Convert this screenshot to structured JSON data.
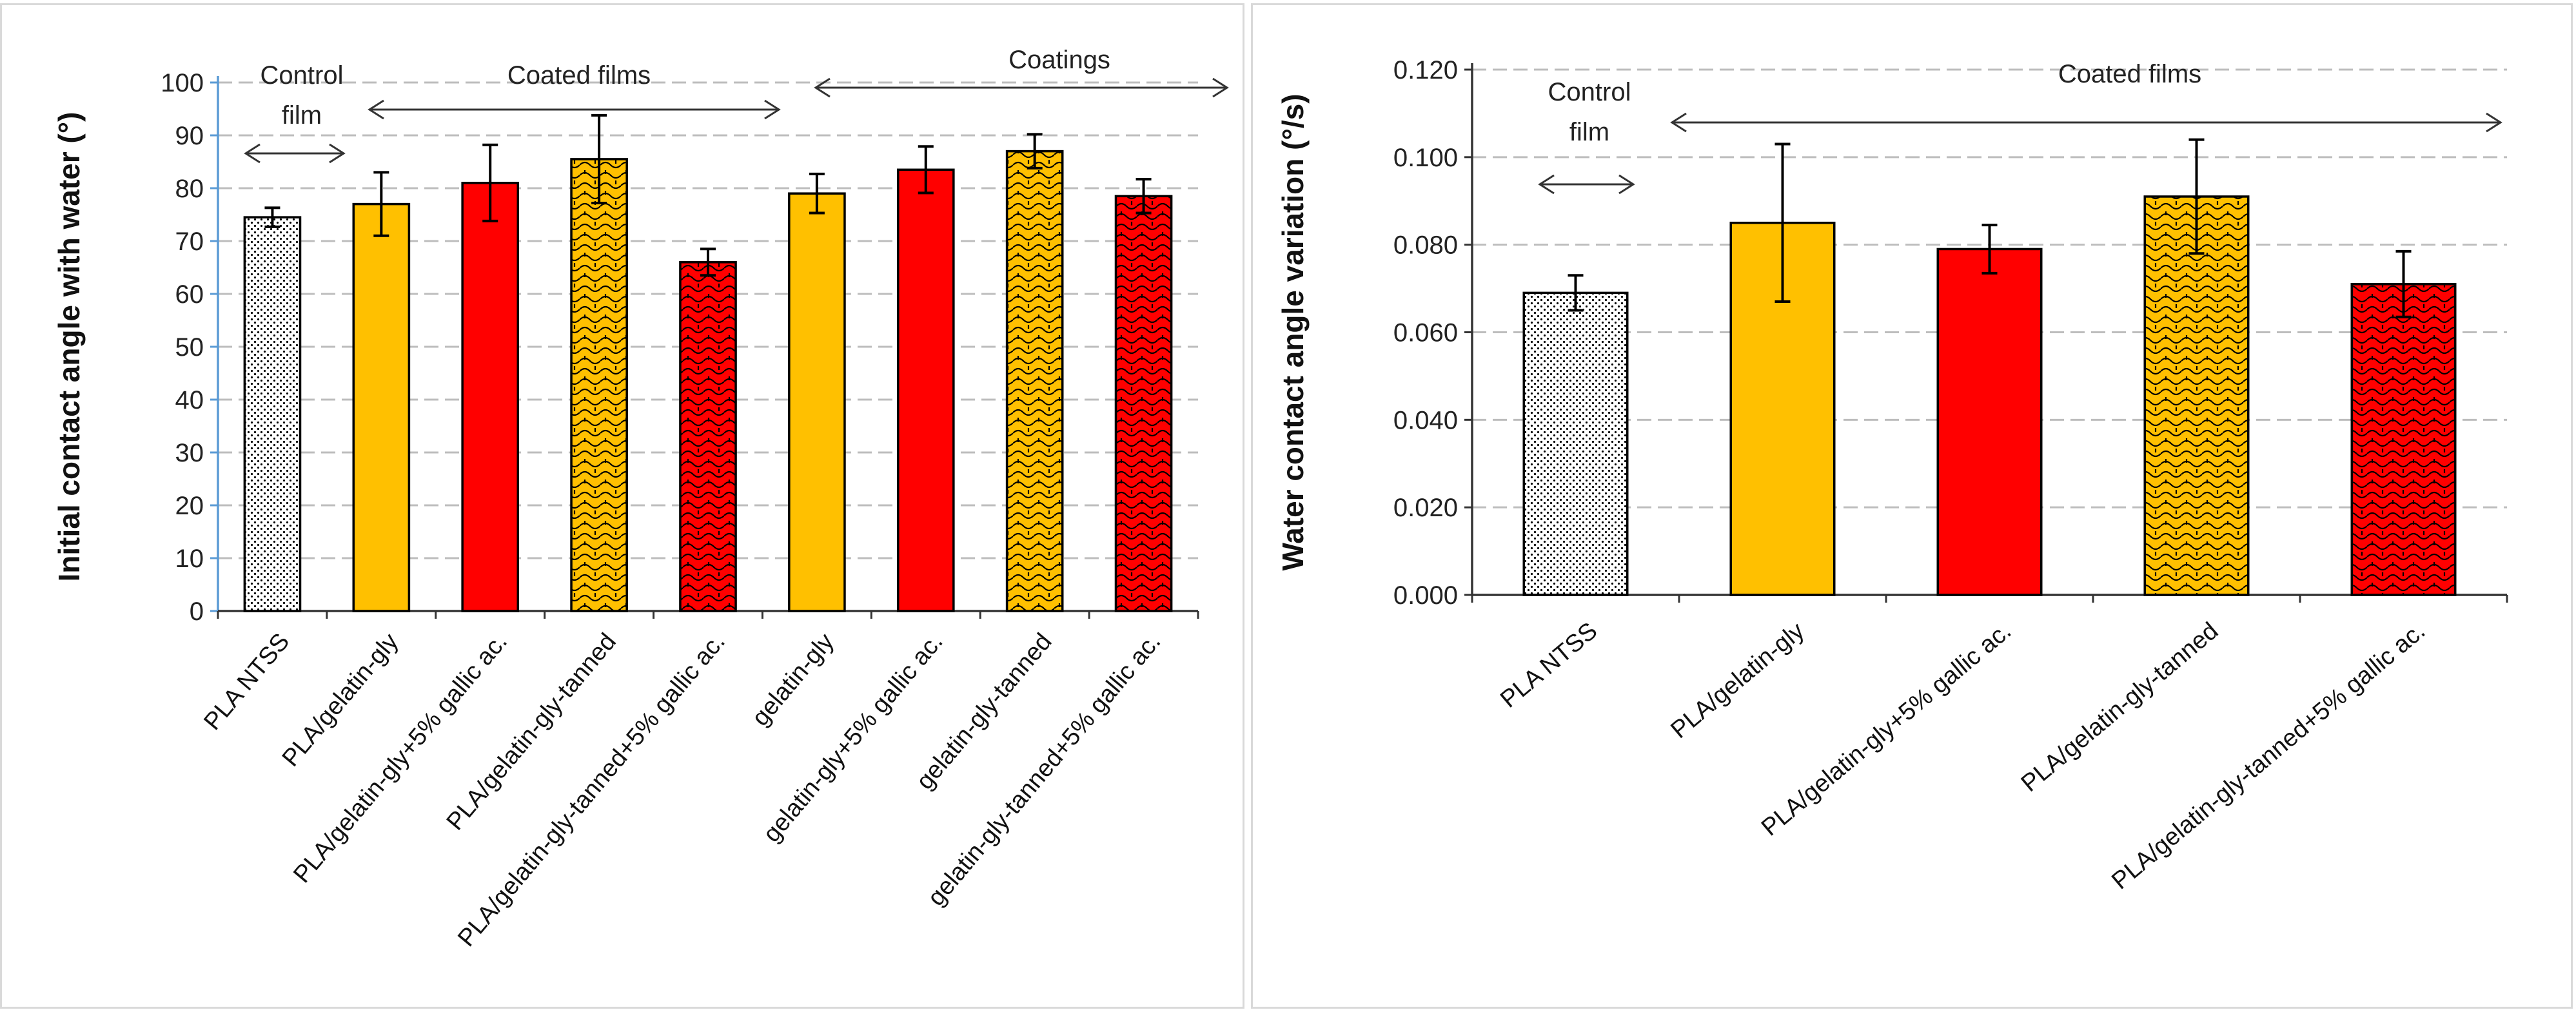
{
  "colors": {
    "yellow": "#ffc000",
    "red": "#ff0000",
    "control_fill": "#ffffff",
    "grid": "#bdbdbd",
    "left_axis": "#5b9bd5"
  },
  "chart_data": [
    {
      "type": "bar",
      "title": "",
      "xlabel": "",
      "ylabel": "Initial contact angle with water (°)",
      "ylim": [
        0,
        100
      ],
      "ytick_step": 10,
      "categories": [
        "PLA NTSS",
        "PLA/gelatin-gly",
        "PLA/gelatin-gly+5% gallic ac.",
        "PLA/gelatin-gly-tanned",
        "PLA/gelatin-gly-tanned+5% gallic ac.",
        "gelatin-gly",
        "gelatin-gly+5% gallic ac.",
        "gelatin-gly-tanned",
        "gelatin-gly-tanned+5% gallic ac."
      ],
      "values": [
        74.5,
        77,
        81,
        85.5,
        66,
        79,
        83.5,
        87,
        78.5
      ],
      "errors": [
        1.8,
        6,
        7.2,
        8.3,
        2.5,
        3.7,
        4.4,
        3.2,
        3.2
      ],
      "fills": [
        "control",
        "yellow",
        "red",
        "yellow-pattern",
        "red-pattern",
        "yellow",
        "red",
        "yellow-pattern",
        "red-pattern"
      ],
      "annotations": [
        "Control\nfilm",
        "Coated  films",
        "Coatings"
      ]
    },
    {
      "type": "bar",
      "title": "",
      "xlabel": "",
      "ylabel": "Water contact angle variation (°/s)",
      "ylim": [
        0,
        0.12
      ],
      "ytick_step": 0.02,
      "categories": [
        "PLA NTSS",
        "PLA/gelatin-gly",
        "PLA/gelatin-gly+5% gallic ac.",
        "PLA/gelatin-gly-tanned",
        "PLA/gelatin-gly-tanned+5% gallic ac."
      ],
      "values": [
        0.069,
        0.085,
        0.079,
        0.091,
        0.071
      ],
      "errors": [
        0.004,
        0.018,
        0.0055,
        0.013,
        0.0075
      ],
      "fills": [
        "control",
        "yellow",
        "red",
        "yellow-pattern",
        "red-pattern"
      ],
      "annotations": [
        "Control\nfilm",
        "Coated  films"
      ]
    }
  ]
}
